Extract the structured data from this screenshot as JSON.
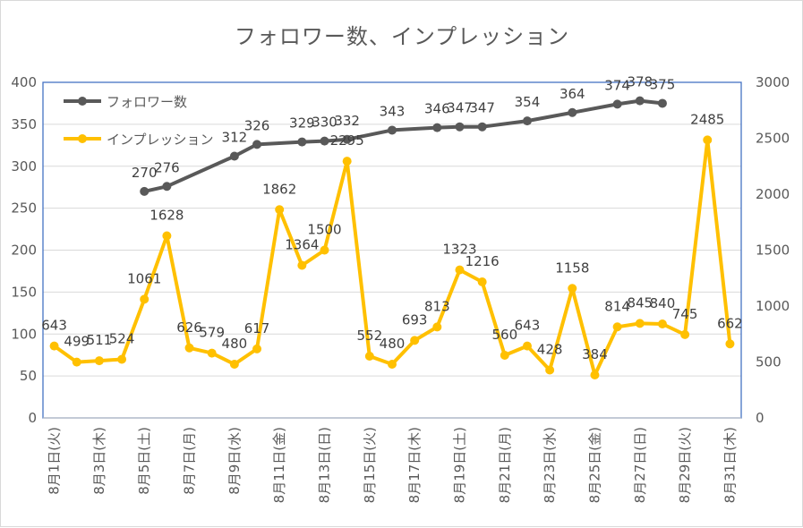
{
  "chart_data": {
    "type": "line",
    "title": "フォロワー数、インプレッション",
    "categories": [
      "8月1日(火)",
      "8月2日(水)",
      "8月3日(木)",
      "8月4日(金)",
      "8月5日(土)",
      "8月6日(日)",
      "8月7日(月)",
      "8月8日(火)",
      "8月9日(水)",
      "8月10日(木)",
      "8月11日(金)",
      "8月12日(土)",
      "8月13日(日)",
      "8月14日(月)",
      "8月15日(火)",
      "8月16日(水)",
      "8月17日(木)",
      "8月18日(金)",
      "8月19日(土)",
      "8月20日(日)",
      "8月21日(月)",
      "8月22日(火)",
      "8月23日(水)",
      "8月24日(木)",
      "8月25日(金)",
      "8月26日(土)",
      "8月27日(日)",
      "8月28日(月)",
      "8月29日(火)",
      "8月30日(水)",
      "8月31日(木)"
    ],
    "tick_labels": [
      "8月1日(火)",
      "8月3日(木)",
      "8月5日(土)",
      "8月7日(月)",
      "8月9日(水)",
      "8月11日(金)",
      "8月13日(日)",
      "8月15日(火)",
      "8月17日(木)",
      "8月19日(土)",
      "8月21日(月)",
      "8月23日(水)",
      "8月25日(金)",
      "8月27日(日)",
      "8月29日(火)",
      "8月31日(木)"
    ],
    "y_left": {
      "min": 0,
      "max": 400,
      "step": 50,
      "ticks": [
        "0",
        "50",
        "100",
        "150",
        "200",
        "250",
        "300",
        "350",
        "400"
      ]
    },
    "y_right": {
      "min": 0,
      "max": 3000,
      "step": 500,
      "ticks": [
        "0",
        "500",
        "1000",
        "1500",
        "2000",
        "2500",
        "3000"
      ]
    },
    "legend_position": "top-left",
    "series": [
      {
        "name": "フォロワー数",
        "axis": "left",
        "color": "#595959",
        "values": [
          null,
          null,
          null,
          null,
          270,
          276,
          null,
          null,
          312,
          326,
          null,
          329,
          330,
          332,
          null,
          343,
          null,
          346,
          347,
          347,
          null,
          354,
          null,
          364,
          null,
          374,
          378,
          375,
          null,
          null,
          null
        ]
      },
      {
        "name": "インプレッション",
        "axis": "right",
        "color": "#FFC000",
        "values": [
          643,
          499,
          511,
          524,
          1061,
          1628,
          626,
          579,
          480,
          617,
          1862,
          1364,
          1500,
          2295,
          552,
          480,
          693,
          813,
          1323,
          1216,
          560,
          643,
          428,
          1158,
          384,
          814,
          845,
          840,
          745,
          2485,
          662
        ]
      }
    ]
  }
}
